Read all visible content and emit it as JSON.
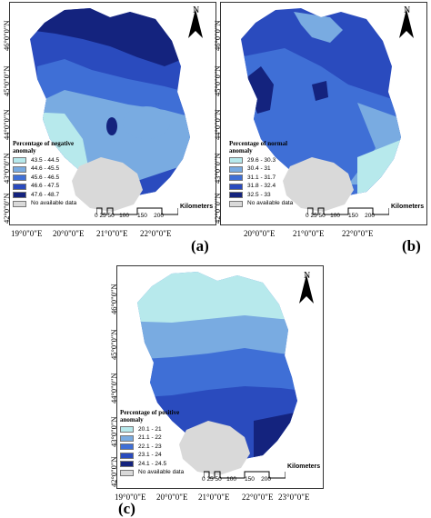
{
  "colors": {
    "c1": "#b7e9ec",
    "c2": "#79abe1",
    "c3": "#3f6fd6",
    "c4": "#2a4bbe",
    "c5": "#14237e",
    "no_data": "#d9d9d9"
  },
  "common": {
    "north_label": "N",
    "lon_labels": [
      "19°0\"0\"E",
      "20°0\"0\"E",
      "21°0\"0\"E",
      "22°0\"0\"E",
      "23°0\"0\"E"
    ],
    "lat_labels": [
      "46°0\"0\"N",
      "45°0\"0\"N",
      "44°0\"0\"N",
      "43°0\"0\"N",
      "42°0\"0\"N"
    ],
    "scale_title": "Kilometers",
    "scale_ticks": [
      "0",
      "25",
      "50",
      "100",
      "150",
      "200"
    ],
    "no_data_label": "No available data"
  },
  "panels": {
    "a": {
      "label": "(a)",
      "legend_title": "Percentage of negative anomaly",
      "classes": [
        "43.5 - 44.5",
        "44.6 - 45.5",
        "45.6 - 46.5",
        "46.6 - 47.5",
        "47.6 - 48.7"
      ]
    },
    "b": {
      "label": "(b)",
      "legend_title": "Percentage of normal anomaly",
      "classes": [
        "29.6 - 30.3",
        "30.4 - 31",
        "31.1 - 31.7",
        "31.8 - 32.4",
        "32.5 - 33"
      ]
    },
    "c": {
      "label": "(c)",
      "legend_title": "Percentage of positive anomaly",
      "classes": [
        "20.1 - 21",
        "21.1 - 22",
        "22.1 - 23",
        "23.1 - 24",
        "24.1 - 24.5"
      ]
    }
  }
}
